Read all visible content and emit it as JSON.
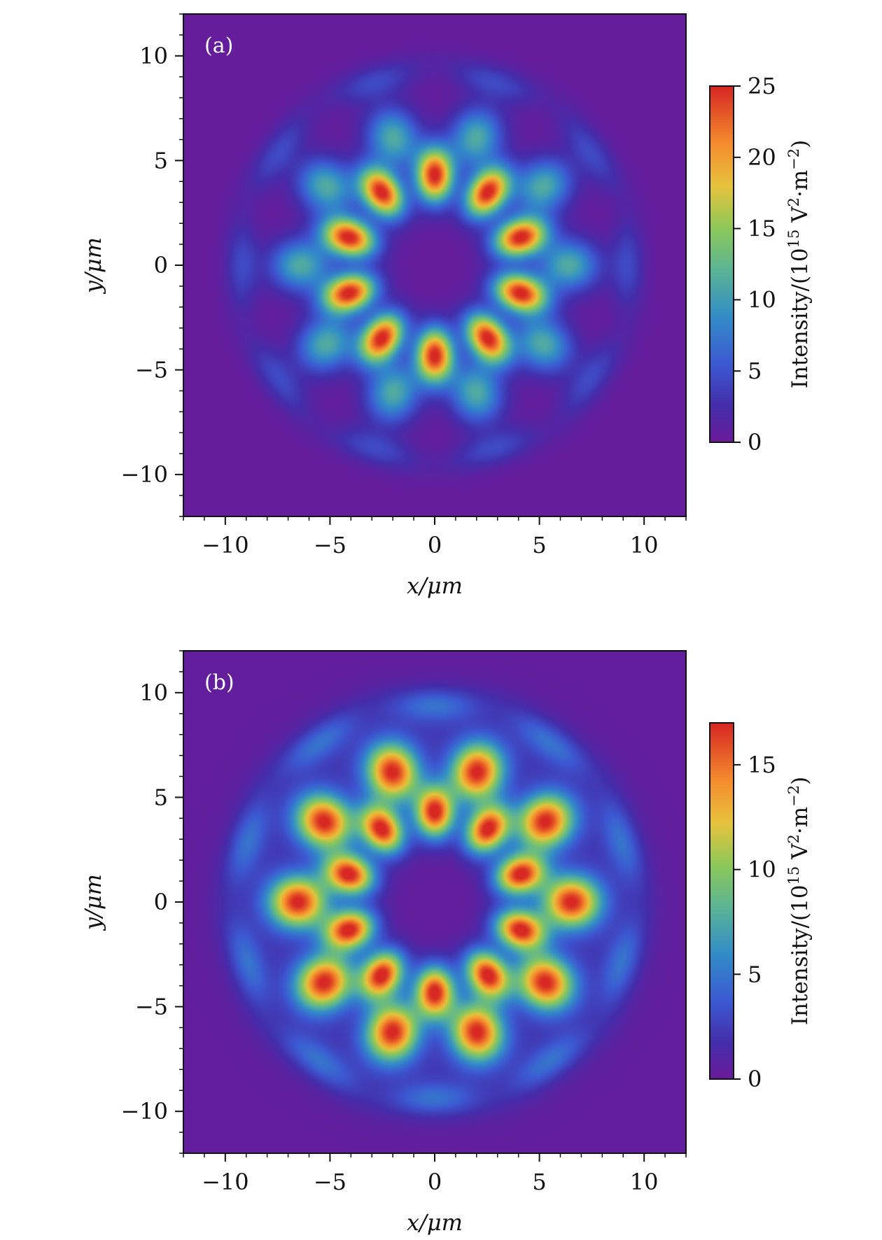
{
  "chart_data": [
    {
      "type": "heatmap",
      "panel_label": "(a)",
      "xlabel": "x/μm",
      "ylabel": "y/μm",
      "xlim": [
        -12,
        12
      ],
      "ylim": [
        -12,
        12
      ],
      "x_ticks": [
        "−10",
        "−5",
        "0",
        "5",
        "10"
      ],
      "y_ticks": [
        "10",
        "5",
        "0",
        "−5",
        "−10"
      ],
      "colorbar": {
        "label": "Intensity/(10^15 V²·m⁻²)",
        "label_parts": {
          "prefix": "Intensity/(10",
          "exponent": "15",
          "middle": " V",
          "sq": "2",
          "unit_tail": "·m",
          "neg_exp": "−2",
          "close": ")"
        },
        "min": 0,
        "max": 25,
        "ticks": [
          "0",
          "5",
          "10",
          "15",
          "20",
          "25"
        ]
      },
      "lobes": [
        {
          "ring_radius": 4.3,
          "count": 10,
          "offset_deg": 90,
          "peak": 25,
          "semi_major": 0.9,
          "semi_minor": 0.62
        },
        {
          "ring_radius": 6.4,
          "count": 10,
          "offset_deg": 108,
          "peak": 11,
          "semi_major": 1.0,
          "semi_minor": 0.85
        },
        {
          "ring_radius": 9.2,
          "count": 10,
          "offset_deg": 108,
          "peak": 4,
          "semi_major": 1.5,
          "semi_minor": 0.55
        }
      ],
      "background": 0.3
    },
    {
      "type": "heatmap",
      "panel_label": "(b)",
      "xlabel": "x/μm",
      "ylabel": "y/μm",
      "xlim": [
        -12,
        12
      ],
      "ylim": [
        -12,
        12
      ],
      "x_ticks": [
        "−10",
        "−5",
        "0",
        "5",
        "10"
      ],
      "y_ticks": [
        "10",
        "5",
        "0",
        "−5",
        "−10"
      ],
      "colorbar": {
        "label": "Intensity/(10^15 V²·m⁻²)",
        "label_parts": {
          "prefix": "Intensity/(10",
          "exponent": "15",
          "middle": " V",
          "sq": "2",
          "unit_tail": "·m",
          "neg_exp": "−2",
          "close": ")"
        },
        "min": 0,
        "max": 17,
        "ticks": [
          "0",
          "5",
          "10",
          "15"
        ]
      },
      "lobes": [
        {
          "ring_radius": 4.3,
          "count": 10,
          "offset_deg": 90,
          "peak": 17,
          "semi_major": 0.85,
          "semi_minor": 0.65
        },
        {
          "ring_radius": 6.5,
          "count": 10,
          "offset_deg": 72,
          "peak": 16,
          "semi_major": 0.95,
          "semi_minor": 0.85
        },
        {
          "ring_radius": 9.4,
          "count": 10,
          "offset_deg": 90,
          "peak": 3.5,
          "semi_major": 1.5,
          "semi_minor": 0.55
        }
      ],
      "halo": {
        "radius": 8.0,
        "width": 2.2,
        "value": 1.6
      },
      "background": 0.3
    }
  ]
}
